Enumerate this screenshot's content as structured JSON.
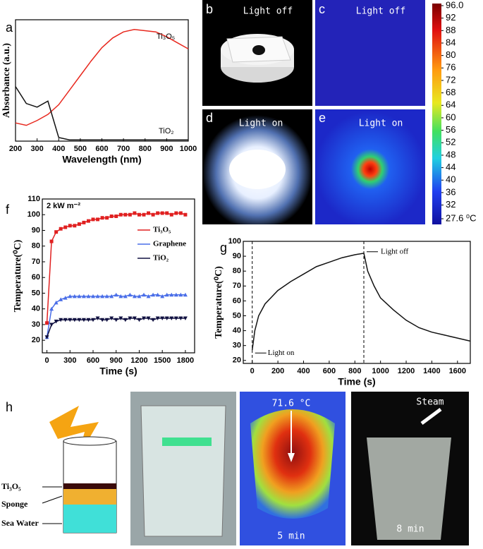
{
  "chart_data": [
    {
      "type": "line",
      "xlabel": "Wavelength (nm)",
      "ylabel": "Absorbance (a.u.)",
      "x": [
        200,
        250,
        300,
        350,
        400,
        450,
        500,
        550,
        600,
        650,
        700,
        750,
        800,
        850,
        900,
        950,
        1000
      ],
      "series": [
        {
          "name": "Ti₃O₅",
          "color": "#e8281e",
          "values": [
            0.15,
            0.13,
            0.17,
            0.22,
            0.3,
            0.42,
            0.54,
            0.66,
            0.77,
            0.85,
            0.9,
            0.92,
            0.91,
            0.9,
            0.86,
            0.81,
            0.76
          ]
        },
        {
          "name": "TiO₂",
          "color": "#111111",
          "values": [
            0.45,
            0.31,
            0.28,
            0.33,
            0.03,
            0.01,
            0.01,
            0.01,
            0.01,
            0.01,
            0.01,
            0.01,
            0.01,
            0.01,
            0.01,
            0.01,
            0.01
          ]
        }
      ],
      "xlim": [
        200,
        1000
      ],
      "xticks": [
        200,
        300,
        400,
        500,
        600,
        700,
        800,
        900,
        1000
      ],
      "ylim": [
        0,
        1
      ]
    },
    {
      "type": "line",
      "markers": true,
      "legend": "right",
      "annotation": "2 kW m⁻²",
      "xlabel": "Time (s)",
      "ylabel": "Temperature(⁰C)",
      "x": [
        0,
        60,
        120,
        180,
        240,
        300,
        360,
        420,
        480,
        540,
        600,
        660,
        720,
        780,
        840,
        900,
        960,
        1020,
        1080,
        1140,
        1200,
        1260,
        1320,
        1380,
        1440,
        1500,
        1560,
        1620,
        1680,
        1740,
        1800
      ],
      "series": [
        {
          "name": "Ti₃O₅",
          "color": "#e02020",
          "marker": "square",
          "values": [
            31,
            83,
            89,
            91,
            92,
            93,
            93,
            94,
            95,
            96,
            97,
            97,
            98,
            98,
            99,
            99,
            100,
            100,
            100,
            101,
            100,
            100,
            101,
            100,
            101,
            101,
            101,
            100,
            101,
            101,
            100
          ]
        },
        {
          "name": "Graphene",
          "color": "#4a6ee8",
          "marker": "triangle",
          "values": [
            22,
            40,
            44,
            46,
            47,
            48,
            48,
            48,
            48,
            48,
            48,
            48,
            48,
            48,
            48,
            49,
            48,
            48,
            49,
            48,
            48,
            49,
            48,
            49,
            49,
            48,
            49,
            49,
            49,
            49,
            49
          ]
        },
        {
          "name": "TiO₂",
          "color": "#101040",
          "marker": "triangle-down",
          "values": [
            22,
            30,
            32,
            33,
            33,
            33,
            33,
            33,
            33,
            33,
            33,
            34,
            33,
            33,
            34,
            33,
            34,
            33,
            34,
            34,
            33,
            34,
            34,
            33,
            34,
            34,
            34,
            34,
            34,
            34,
            34
          ]
        }
      ],
      "xlim": [
        -60,
        1920
      ],
      "xticks": [
        0,
        300,
        600,
        900,
        1200,
        1500,
        1800
      ],
      "ylim": [
        12,
        110
      ],
      "yticks": [
        20,
        30,
        40,
        50,
        60,
        70,
        80,
        90,
        100,
        110
      ]
    },
    {
      "type": "line",
      "xlabel": "Time (s)",
      "ylabel": "Temperature(⁰C)",
      "x": [
        0,
        20,
        50,
        100,
        200,
        300,
        400,
        500,
        600,
        700,
        800,
        870,
        880,
        900,
        950,
        1000,
        1100,
        1200,
        1300,
        1400,
        1500,
        1600,
        1700
      ],
      "series": [
        {
          "name": "Ti₃O₅",
          "color": "#111111",
          "values": [
            27,
            40,
            50,
            58,
            67,
            73,
            78,
            83,
            86,
            89,
            91,
            92,
            88,
            80,
            70,
            62,
            54,
            47,
            42,
            39,
            37,
            35,
            33
          ]
        }
      ],
      "vlines": [
        0,
        870
      ],
      "annotations": [
        "Light on",
        "Light off"
      ],
      "xlim": [
        -70,
        1700
      ],
      "xticks": [
        0,
        200,
        400,
        600,
        800,
        1000,
        1200,
        1400,
        1600
      ],
      "ylim": [
        18,
        100
      ],
      "yticks": [
        20,
        30,
        40,
        50,
        60,
        70,
        80,
        90,
        100
      ]
    },
    {
      "type": "colorbar",
      "ylim": [
        27.6,
        96
      ],
      "yticks": [
        {
          "value": 96,
          "label": "96.0"
        },
        92,
        88,
        84,
        80,
        76,
        72,
        68,
        64,
        60,
        56,
        52,
        48,
        44,
        40,
        36,
        32,
        {
          "value": 27.6,
          "label": "27.6 ⁰C"
        }
      ]
    }
  ],
  "panel_letters": [
    "a",
    "b",
    "c",
    "d",
    "e",
    "f",
    "g",
    "h"
  ],
  "photo_texts": {
    "b": "Light off",
    "c": "Light off",
    "d": "Light on",
    "e": "Light on",
    "h_temp": "71.6 °C",
    "h_time1": "5 min",
    "h_time2": "8 min",
    "h_steam": "Steam"
  },
  "diagram_labels": [
    "Ti₃O₅",
    "Sponge",
    "Sea Water"
  ]
}
